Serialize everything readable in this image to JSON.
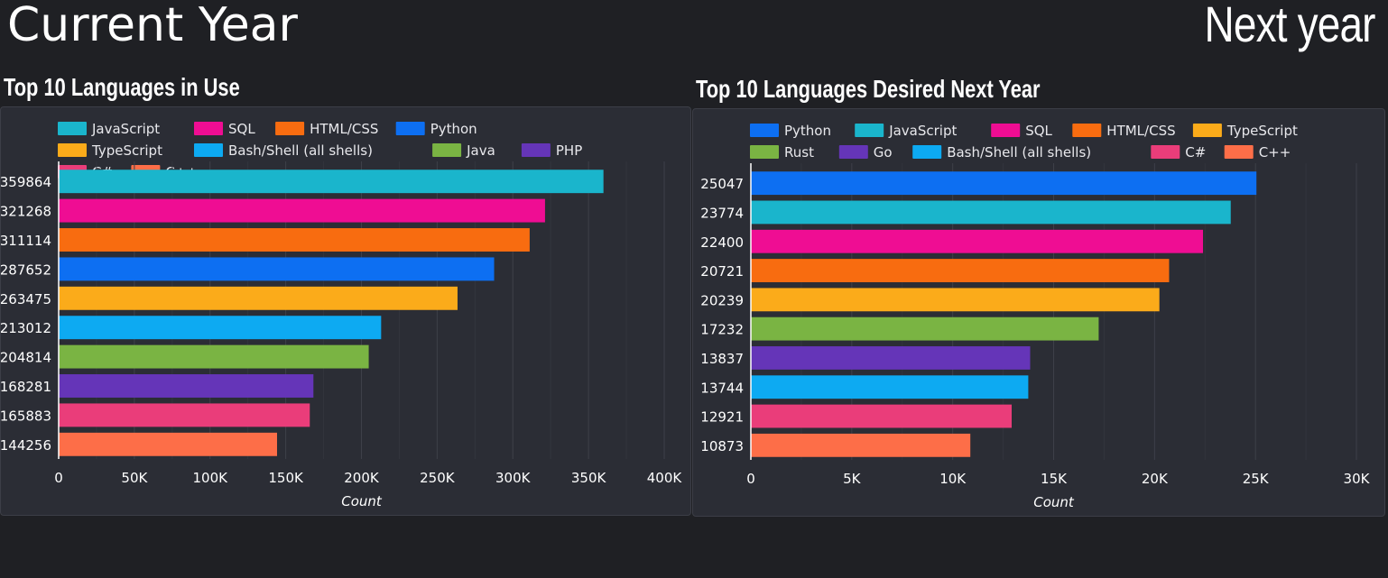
{
  "page": {
    "left_title": "Current Year",
    "right_title": "Next year"
  },
  "chart_data": [
    {
      "type": "bar",
      "orientation": "horizontal",
      "title": "Top 10 Languages in Use",
      "xlabel": "Count",
      "xlim": [
        0,
        400000
      ],
      "xticks": [
        "0",
        "50K",
        "100K",
        "150K",
        "200K",
        "250K",
        "300K",
        "350K",
        "400K"
      ],
      "tick_values": [
        0,
        50000,
        100000,
        150000,
        200000,
        250000,
        300000,
        350000,
        400000
      ],
      "grid": true,
      "legend_position": "top",
      "series": [
        {
          "name": "JavaScript",
          "value": 359864,
          "label": "359864",
          "color": "#1ab5cc"
        },
        {
          "name": "SQL",
          "value": 321268,
          "label": "321268",
          "color": "#ef0d93"
        },
        {
          "name": "HTML/CSS",
          "value": 311114,
          "label": "311114",
          "color": "#f86c10"
        },
        {
          "name": "Python",
          "value": 287652,
          "label": "287652",
          "color": "#0d6ff2"
        },
        {
          "name": "TypeScript",
          "value": 263475,
          "label": "263475",
          "color": "#fbab1a"
        },
        {
          "name": "Bash/Shell (all shells)",
          "value": 213012,
          "label": "213012",
          "color": "#0daaf2"
        },
        {
          "name": "Java",
          "value": 204814,
          "label": "204814",
          "color": "#7ab443"
        },
        {
          "name": "PHP",
          "value": 168281,
          "label": "168281",
          "color": "#6535b8"
        },
        {
          "name": "C#",
          "value": 165883,
          "label": "165883",
          "color": "#ea3d7a"
        },
        {
          "name": "C++",
          "value": 144256,
          "label": "144256",
          "color": "#fd6e48"
        }
      ]
    },
    {
      "type": "bar",
      "orientation": "horizontal",
      "title": "Top 10 Languages Desired Next Year",
      "xlabel": "Count",
      "xlim": [
        0,
        30000
      ],
      "xticks": [
        "0",
        "5K",
        "10K",
        "15K",
        "20K",
        "25K",
        "30K"
      ],
      "tick_values": [
        0,
        5000,
        10000,
        15000,
        20000,
        25000,
        30000
      ],
      "grid": true,
      "legend_position": "top",
      "series": [
        {
          "name": "Python",
          "value": 25047,
          "label": "25047",
          "color": "#0d6ff2"
        },
        {
          "name": "JavaScript",
          "value": 23774,
          "label": "23774",
          "color": "#1ab5cc"
        },
        {
          "name": "SQL",
          "value": 22400,
          "label": "22400",
          "color": "#ef0d93"
        },
        {
          "name": "HTML/CSS",
          "value": 20721,
          "label": "20721",
          "color": "#f86c10"
        },
        {
          "name": "TypeScript",
          "value": 20239,
          "label": "20239",
          "color": "#fbab1a"
        },
        {
          "name": "Rust",
          "value": 17232,
          "label": "17232",
          "color": "#7ab443"
        },
        {
          "name": "Go",
          "value": 13837,
          "label": "13837",
          "color": "#6535b8"
        },
        {
          "name": "Bash/Shell (all shells)",
          "value": 13744,
          "label": "13744",
          "color": "#0daaf2"
        },
        {
          "name": "C#",
          "value": 12921,
          "label": "12921",
          "color": "#ea3d7a"
        },
        {
          "name": "C++",
          "value": 10873,
          "label": "10873",
          "color": "#fd6e48"
        }
      ]
    }
  ]
}
